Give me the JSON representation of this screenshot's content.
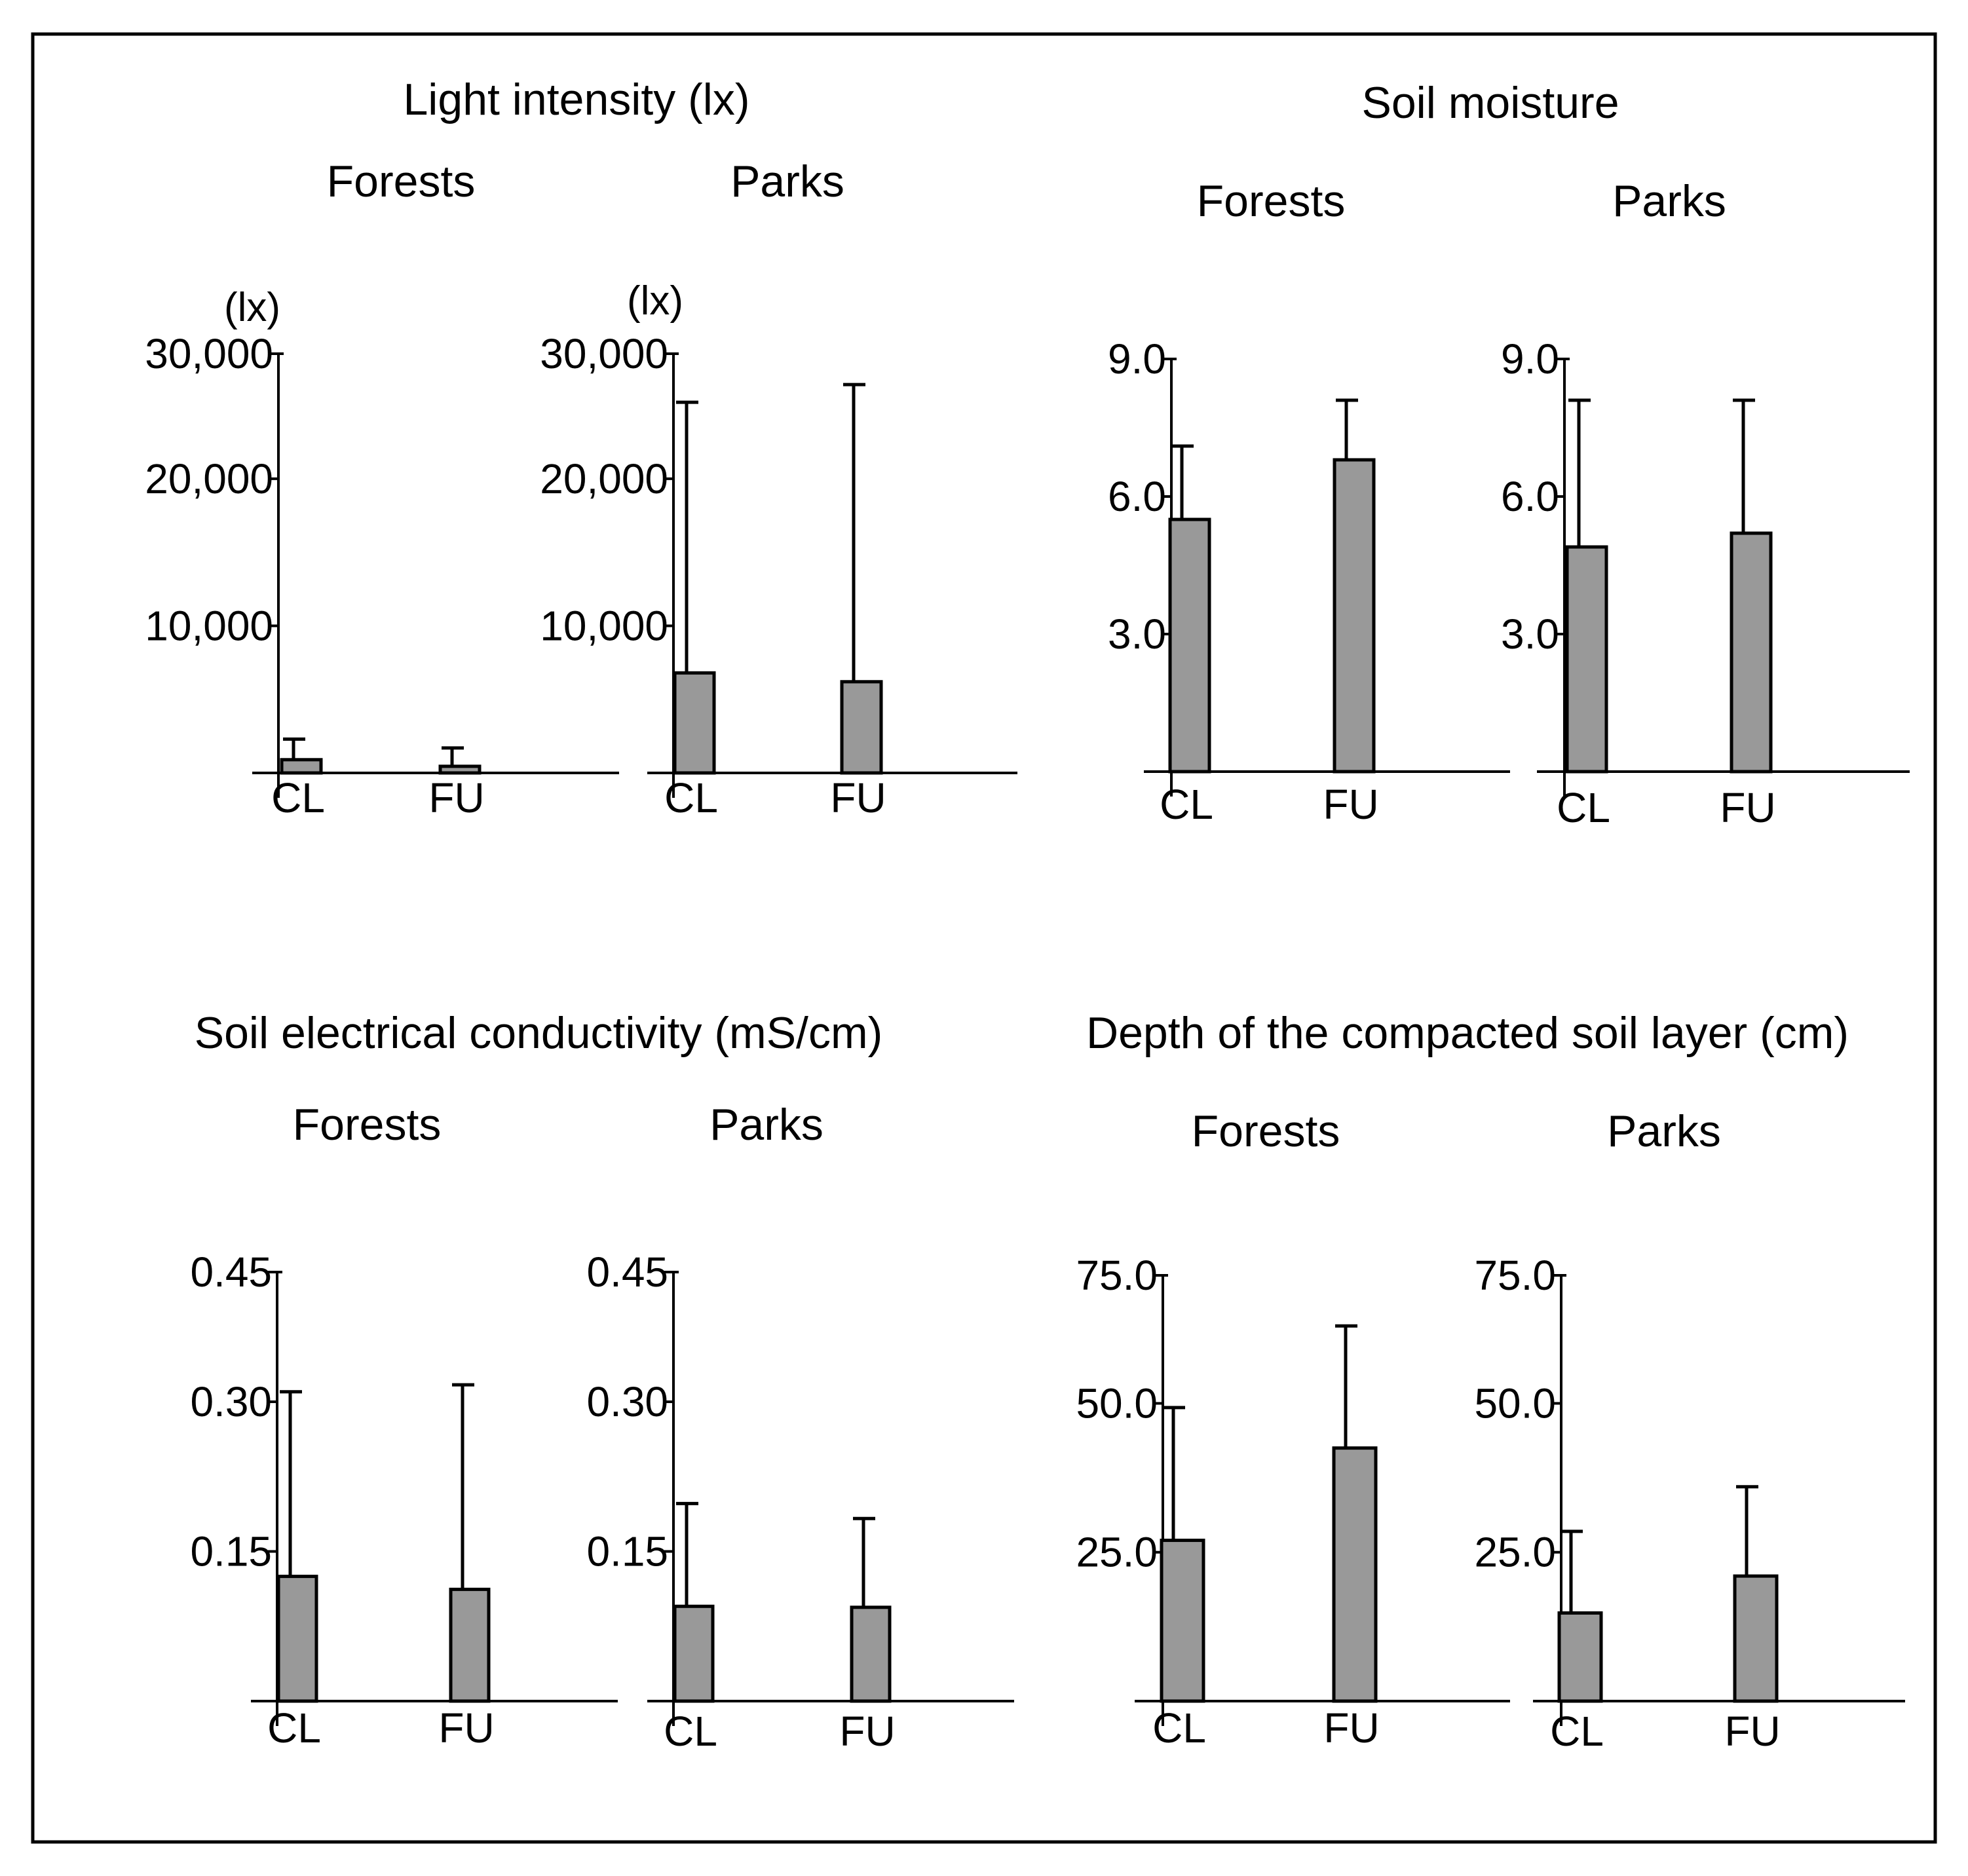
{
  "colors": {
    "bar_fill": "#999999",
    "stroke": "#000000",
    "background": "#ffffff"
  },
  "panel_titles": [
    "Light intensity (lx)",
    "Soil moisture",
    "Soil electrical conductivity (mS/cm)",
    "Depth of the compacted soil layer (cm)"
  ],
  "chart_data": [
    {
      "type": "bar",
      "panel": "Light intensity (lx)",
      "title": "Forests",
      "ylabel": "(lx)",
      "categories": [
        "CL",
        "FU"
      ],
      "values": [
        900,
        450
      ],
      "error_upper": [
        2300,
        1700
      ],
      "ylim": [
        0,
        28500
      ],
      "yticks": [
        10000,
        20000,
        30000
      ],
      "ytick_labels": [
        "10,000",
        "20,000",
        "30,000"
      ]
    },
    {
      "type": "bar",
      "panel": "Light intensity (lx)",
      "title": "Parks",
      "ylabel": "(lx)",
      "categories": [
        "CL",
        "FU"
      ],
      "values": [
        6800,
        6200
      ],
      "error_upper": [
        25200,
        26400
      ],
      "ylim": [
        0,
        28500
      ],
      "yticks": [
        10000,
        20000,
        30000
      ],
      "ytick_labels": [
        "10,000",
        "20,000",
        "30,000"
      ]
    },
    {
      "type": "bar",
      "panel": "Soil moisture",
      "title": "Forests",
      "ylabel": "",
      "categories": [
        "CL",
        "FU"
      ],
      "values": [
        5.5,
        6.8
      ],
      "error_upper": [
        7.1,
        8.1
      ],
      "ylim": [
        0,
        9.0
      ],
      "yticks": [
        3.0,
        6.0,
        9.0
      ],
      "ytick_labels": [
        "3.0",
        "6.0",
        "9.0"
      ]
    },
    {
      "type": "bar",
      "panel": "Soil moisture",
      "title": "Parks",
      "ylabel": "",
      "categories": [
        "CL",
        "FU"
      ],
      "values": [
        4.9,
        5.2
      ],
      "error_upper": [
        8.1,
        8.1
      ],
      "ylim": [
        0,
        9.0
      ],
      "yticks": [
        3.0,
        6.0,
        9.0
      ],
      "ytick_labels": [
        "3.0",
        "6.0",
        "9.0"
      ]
    },
    {
      "type": "bar",
      "panel": "Soil electrical conductivity (mS/cm)",
      "title": "Forests",
      "ylabel": "",
      "categories": [
        "CL",
        "FU"
      ],
      "values": [
        0.125,
        0.112
      ],
      "error_upper": [
        0.31,
        0.317
      ],
      "ylim": [
        0,
        0.43
      ],
      "yticks": [
        0.15,
        0.3,
        0.45
      ],
      "ytick_labels": [
        "0.15",
        "0.30",
        "0.45"
      ]
    },
    {
      "type": "bar",
      "panel": "Soil electrical conductivity (mS/cm)",
      "title": "Parks",
      "ylabel": "",
      "categories": [
        "CL",
        "FU"
      ],
      "values": [
        0.095,
        0.094
      ],
      "error_upper": [
        0.198,
        0.183
      ],
      "ylim": [
        0,
        0.43
      ],
      "yticks": [
        0.15,
        0.3,
        0.45
      ],
      "ytick_labels": [
        "0.15",
        "0.30",
        "0.45"
      ]
    },
    {
      "type": "bar",
      "panel": "Depth of the compacted soil layer (cm)",
      "title": "Forests",
      "ylabel": "",
      "categories": [
        "CL",
        "FU"
      ],
      "values": [
        27.0,
        42.5
      ],
      "error_upper": [
        49.3,
        63.0
      ],
      "ylim": [
        0,
        71.5
      ],
      "yticks": [
        25.0,
        50.0,
        75.0
      ],
      "ytick_labels": [
        "25.0",
        "50.0",
        "75.0"
      ]
    },
    {
      "type": "bar",
      "panel": "Depth of the compacted soil layer (cm)",
      "title": "Parks",
      "ylabel": "",
      "categories": [
        "CL",
        "FU"
      ],
      "values": [
        14.8,
        21.0
      ],
      "error_upper": [
        28.5,
        36.0
      ],
      "ylim": [
        0,
        71.5
      ],
      "yticks": [
        25.0,
        50.0,
        75.0
      ],
      "ytick_labels": [
        "25.0",
        "50.0",
        "75.0"
      ]
    }
  ]
}
